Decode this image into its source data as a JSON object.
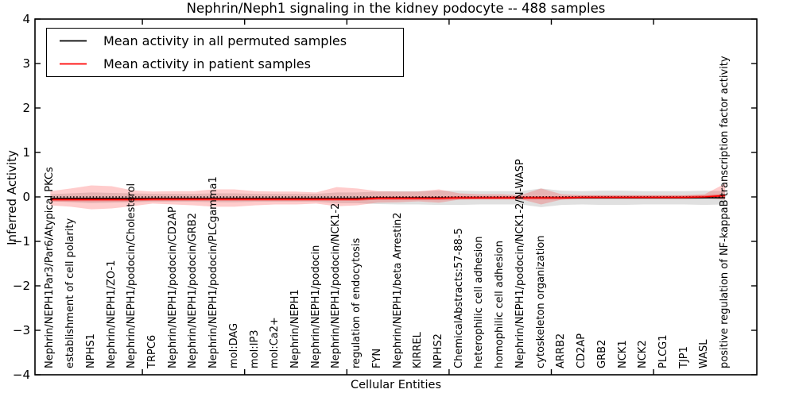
{
  "figure": {
    "title": "Nephrin/Neph1 signaling in the kidney podocyte -- 488 samples",
    "xlabel": "Cellular Entities",
    "ylabel": "Inferred Activity"
  },
  "legend": {
    "position": "upper left",
    "items": [
      {
        "label": "Mean activity in all permuted samples",
        "color": "#000000"
      },
      {
        "label": "Mean activity in patient samples",
        "color": "#ff0000"
      }
    ]
  },
  "chart_data": {
    "type": "line",
    "title": "Nephrin/Neph1 signaling in the kidney podocyte -- 488 samples",
    "xlabel": "Cellular Entities",
    "ylabel": "Inferred Activity",
    "ylim": [
      -4,
      4
    ],
    "xlim": [
      0,
      35
    ],
    "grid": false,
    "legend_position": "upper left",
    "yticks": [
      {
        "value": 4,
        "label": "4"
      },
      {
        "value": 3,
        "label": "3"
      },
      {
        "value": 2,
        "label": "2"
      },
      {
        "value": 1,
        "label": "1"
      },
      {
        "value": 0,
        "label": "0"
      },
      {
        "value": -1,
        "label": "−1"
      },
      {
        "value": -2,
        "label": "−2"
      },
      {
        "value": -3,
        "label": "−3"
      },
      {
        "value": -4,
        "label": "−4"
      }
    ],
    "xticks": [
      5,
      10,
      15,
      20,
      25,
      30
    ],
    "categories": [
      "Nephrin/NEPH1Par3/Par6/Atypical PKCs",
      "establishment of cell polarity",
      "NPHS1",
      "Nephrin/NEPH1/ZO-1",
      "Nephrin/NEPH1/podocin/Cholesterol",
      "TRPC6",
      "Nephrin/NEPH1/podocin/CD2AP",
      "Nephrin/NEPH1/podocin/GRB2",
      "Nephrin/NEPH1/podocin/PLCgamma1",
      "mol:DAG",
      "mol:IP3",
      "mol:Ca2+",
      "Nephrin/NEPH1",
      "Nephrin/NEPH1/podocin",
      "Nephrin/NEPH1/podocin/NCK1-2",
      "regulation of endocytosis",
      "FYN",
      "Nephrin/NEPH1/beta Arrestin2",
      "KIRREL",
      "NPHS2",
      "ChemicalAbstracts:57-88-5",
      "heterophilic cell adhesion",
      "homophilic cell adhesion",
      "Nephrin/NEPH1/podocin/NCK1-2/N-WASP",
      "cytoskeleton organization",
      "ARRB2",
      "CD2AP",
      "GRB2",
      "NCK1",
      "NCK2",
      "PLCG1",
      "TJP1",
      "WASL",
      "positive regulation of NF-kappaB transcription factor activity"
    ],
    "series": [
      {
        "name": "Mean activity in all permuted samples",
        "data_name": "permuted-mean-line",
        "color": "#000000",
        "width": 1.4,
        "values": [
          -0.03,
          -0.03,
          -0.03,
          -0.03,
          -0.03,
          -0.03,
          -0.03,
          -0.03,
          -0.03,
          -0.03,
          -0.03,
          -0.03,
          -0.03,
          -0.03,
          -0.03,
          -0.03,
          -0.02,
          -0.02,
          -0.02,
          -0.02,
          -0.02,
          -0.02,
          -0.02,
          -0.02,
          -0.02,
          -0.02,
          -0.02,
          -0.02,
          -0.02,
          -0.02,
          -0.02,
          -0.02,
          -0.02,
          -0.02
        ]
      },
      {
        "name": "Mean activity in patient samples",
        "data_name": "patient-mean-line",
        "color": "#ff0000",
        "width": 1.6,
        "values": [
          -0.06,
          -0.06,
          -0.06,
          -0.06,
          -0.06,
          -0.05,
          -0.05,
          -0.05,
          -0.05,
          -0.05,
          -0.05,
          -0.05,
          -0.05,
          -0.05,
          -0.05,
          -0.05,
          -0.03,
          -0.03,
          -0.03,
          -0.03,
          -0.02,
          -0.02,
          -0.02,
          -0.02,
          -0.02,
          -0.02,
          -0.01,
          -0.01,
          -0.01,
          -0.01,
          -0.01,
          -0.01,
          0.0,
          0.03
        ]
      }
    ],
    "bands": [
      {
        "name": "permuted-spread-band",
        "color": "#000000",
        "alpha": 0.12,
        "upper": [
          0.06,
          0.08,
          0.1,
          0.09,
          0.08,
          0.07,
          0.07,
          0.07,
          0.08,
          0.08,
          0.07,
          0.07,
          0.07,
          0.07,
          0.1,
          0.1,
          0.12,
          0.13,
          0.13,
          0.14,
          0.14,
          0.13,
          0.13,
          0.13,
          0.19,
          0.14,
          0.13,
          0.14,
          0.14,
          0.13,
          0.13,
          0.13,
          0.14,
          0.13
        ],
        "lower": [
          -0.1,
          -0.12,
          -0.14,
          -0.13,
          -0.12,
          -0.11,
          -0.11,
          -0.11,
          -0.12,
          -0.12,
          -0.11,
          -0.11,
          -0.11,
          -0.11,
          -0.14,
          -0.14,
          -0.16,
          -0.17,
          -0.17,
          -0.18,
          -0.18,
          -0.17,
          -0.17,
          -0.17,
          -0.23,
          -0.18,
          -0.17,
          -0.18,
          -0.18,
          -0.17,
          -0.17,
          -0.17,
          -0.18,
          -0.17
        ]
      },
      {
        "name": "patient-spread-band-outer",
        "color": "#ff0000",
        "alpha": 0.2,
        "upper": [
          0.13,
          0.19,
          0.26,
          0.24,
          0.15,
          0.12,
          0.13,
          0.13,
          0.17,
          0.17,
          0.13,
          0.12,
          0.12,
          0.1,
          0.22,
          0.19,
          0.13,
          0.12,
          0.12,
          0.17,
          0.08,
          0.06,
          0.06,
          0.04,
          0.19,
          0.06,
          0.04,
          0.04,
          0.04,
          0.04,
          0.04,
          0.04,
          0.06,
          0.3
        ],
        "lower": [
          -0.19,
          -0.22,
          -0.28,
          -0.26,
          -0.21,
          -0.15,
          -0.17,
          -0.19,
          -0.22,
          -0.22,
          -0.19,
          -0.17,
          -0.17,
          -0.15,
          -0.21,
          -0.19,
          -0.13,
          -0.12,
          -0.1,
          -0.13,
          -0.06,
          -0.05,
          -0.05,
          -0.05,
          -0.17,
          -0.06,
          -0.03,
          -0.03,
          -0.03,
          -0.03,
          -0.03,
          -0.03,
          -0.03,
          -0.06
        ]
      },
      {
        "name": "patient-stderr-band-inner",
        "color": "#ff0000",
        "alpha": 0.38,
        "half_width": 0.035,
        "around": "Mean activity in patient samples"
      }
    ],
    "zero_line": {
      "y": 0,
      "style": "dotted",
      "color": "#000000"
    }
  }
}
